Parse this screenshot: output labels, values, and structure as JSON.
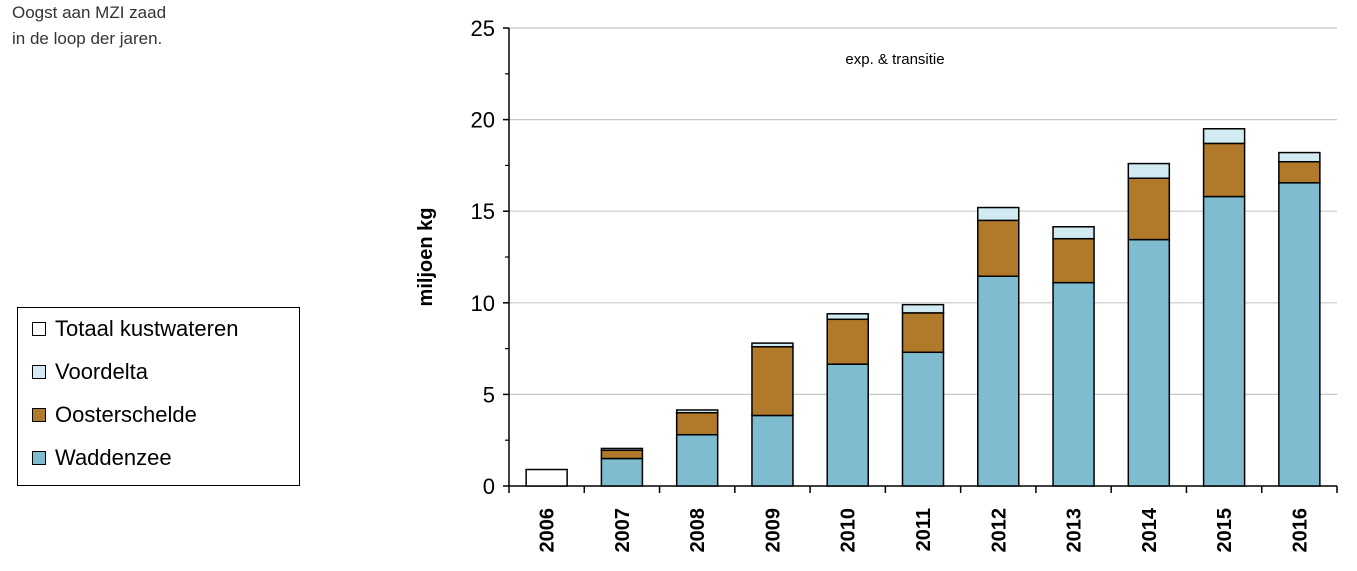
{
  "caption": {
    "line1": "Oogst aan MZI zaad",
    "line2": "in de loop der jaren."
  },
  "chart_data": {
    "type": "bar",
    "stacked": true,
    "categories": [
      "2006",
      "2007",
      "2008",
      "2009",
      "2010",
      "2011",
      "2012",
      "2013",
      "2014",
      "2015",
      "2016"
    ],
    "series": [
      {
        "name": "Waddenzee",
        "color": "#7fbcd0",
        "values": [
          0,
          1.5,
          2.8,
          3.85,
          6.65,
          7.3,
          11.45,
          11.1,
          13.45,
          15.8,
          16.55
        ]
      },
      {
        "name": "Oosterschelde",
        "color": "#b07a2a",
        "values": [
          0,
          0.45,
          1.2,
          3.75,
          2.45,
          2.15,
          3.05,
          2.4,
          3.35,
          2.9,
          1.15
        ]
      },
      {
        "name": "Voordelta",
        "color": "#d2ebf2",
        "values": [
          0,
          0.1,
          0.15,
          0.2,
          0.3,
          0.45,
          0.7,
          0.65,
          0.8,
          0.8,
          0.5
        ]
      },
      {
        "name": "Totaal kustwateren",
        "color": "#ffffff",
        "values": [
          0.9,
          0,
          0,
          0,
          0,
          0,
          0,
          0,
          0,
          0,
          0
        ]
      }
    ],
    "legend_order": [
      "Totaal kustwateren",
      "Voordelta",
      "Oosterschelde",
      "Waddenzee"
    ],
    "ylabel": "miljoen kg",
    "ylim": [
      0,
      25
    ],
    "yticks": [
      0,
      5,
      10,
      15,
      20,
      25
    ],
    "grid": true,
    "legend_position": "left",
    "annotation": "exp. & transitie"
  }
}
